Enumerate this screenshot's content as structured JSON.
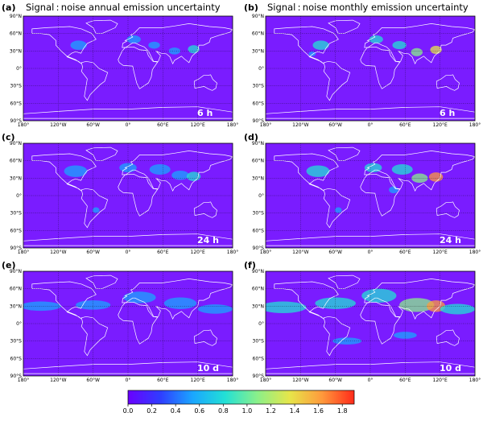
{
  "column_titles": [
    "Signal : noise annual emission uncertainty",
    "Signal : noise monthly emission uncertainty"
  ],
  "panels": [
    {
      "letter": "(a)",
      "time": "6 h"
    },
    {
      "letter": "(b)",
      "time": "6 h"
    },
    {
      "letter": "(c)",
      "time": "24 h"
    },
    {
      "letter": "(d)",
      "time": "24 h"
    },
    {
      "letter": "(e)",
      "time": "10 d"
    },
    {
      "letter": "(f)",
      "time": "10 d"
    }
  ],
  "colors": {
    "background": "#7a1cff",
    "coastline": "#ffffff",
    "colormap": [
      "#6a00ff",
      "#2f3dff",
      "#1aa6ff",
      "#22e0d6",
      "#8af08a",
      "#e6e64a",
      "#ff9a3c",
      "#ff2a1a"
    ]
  },
  "chart_data": {
    "type": "heatmap",
    "projection": "equirectangular",
    "x_range": [
      -180,
      180
    ],
    "y_range": [
      -90,
      90
    ],
    "x_ticks": [
      "180°",
      "120°W",
      "60°W",
      "0°",
      "60°E",
      "120°E",
      "180°"
    ],
    "y_ticks": [
      "90°N",
      "60°N",
      "30°N",
      "0°",
      "30°S",
      "60°S",
      "90°S"
    ],
    "colorbar": {
      "min": 0.0,
      "max": 1.9,
      "ticks": [
        "0.0",
        "0.2",
        "0.4",
        "0.6",
        "0.8",
        "1.0",
        "1.2",
        "1.4",
        "1.6",
        "1.8"
      ]
    },
    "grid": true
  }
}
